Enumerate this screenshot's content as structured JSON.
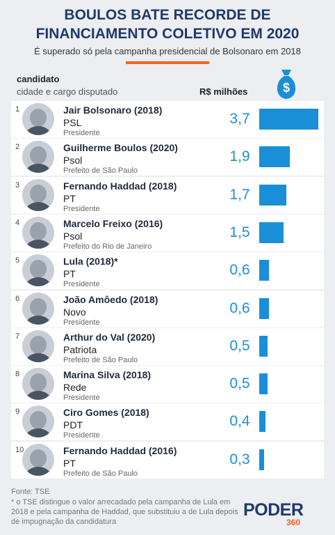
{
  "chart_data": {
    "type": "bar",
    "orientation": "horizontal",
    "title": "BOULOS BATE RECORDE DE FINANCIAMENTO COLETIVO EM 2020",
    "subtitle": "É superado só pela campanha presidencial de Bolsonaro em 2018",
    "header_candidate": "candidato",
    "header_city": "cidade e cargo disputado",
    "value_axis_label": "R$ milhões",
    "ranks": [
      1,
      2,
      3,
      4,
      5,
      6,
      7,
      8,
      9,
      10
    ],
    "categories": [
      "Jair Bolsonaro (2018)",
      "Guilherme Boulos (2020)",
      "Fernando Haddad (2018)",
      "Marcelo Freixo (2016)",
      "Lula (2018)*",
      "João Amôedo (2018)",
      "Arthur do Val (2020)",
      "Marina Silva (2018)",
      "Ciro Gomes (2018)",
      "Fernando Haddad (2016)"
    ],
    "parties": [
      "PSL",
      "Psol",
      "PT",
      "Psol",
      "PT",
      "Novo",
      "Patriota",
      "Rede",
      "PDT",
      "PT"
    ],
    "positions": [
      "Presidente",
      "Prefeito de São Paulo",
      "Presidente",
      "Prefeito do Rio de Janeiro",
      "Presidente",
      "Presidente",
      "Prefeito de São Paulo",
      "Presidente",
      "Presidente",
      "Prefeito de São Paulo"
    ],
    "values": [
      3.7,
      1.9,
      1.7,
      1.5,
      0.6,
      0.6,
      0.5,
      0.5,
      0.4,
      0.3
    ],
    "value_labels": [
      "3,7",
      "1,9",
      "1,7",
      "1,5",
      "0,6",
      "0,6",
      "0,5",
      "0,5",
      "0,4",
      "0,3"
    ],
    "color": "#1a8fd8",
    "source": "Fonte: TSE",
    "note": "* o TSE distingue o valor arrecadado pela campanha de Lula em 2018 e pela campanha de Haddad, que substituiu a de Lula depois de impugnação da candidatura",
    "logo": "PODER",
    "logo_sub": "360"
  }
}
